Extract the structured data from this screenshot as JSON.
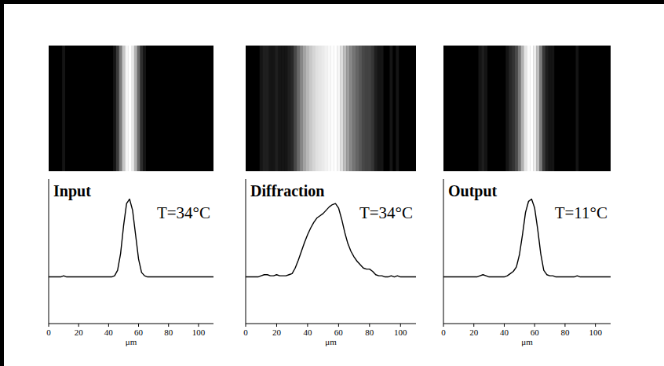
{
  "chart_data": [
    {
      "type": "line",
      "title": "Input",
      "annotation": "T=34°C",
      "x_label": "μm",
      "color": "#000000",
      "x": [
        0,
        2,
        4,
        6,
        8,
        10,
        12,
        14,
        16,
        18,
        20,
        22,
        24,
        26,
        28,
        30,
        32,
        34,
        36,
        38,
        40,
        42,
        44,
        46,
        48,
        50,
        52,
        54,
        56,
        58,
        60,
        62,
        64,
        66,
        68,
        70,
        72,
        74,
        76,
        78,
        80,
        82,
        84,
        86,
        88,
        90,
        92,
        94,
        96,
        98,
        100,
        102,
        104,
        106,
        108,
        110
      ],
      "values": [
        0.12,
        0.12,
        0.12,
        0.12,
        0.12,
        0.13,
        0.12,
        0.12,
        0.12,
        0.12,
        0.12,
        0.12,
        0.12,
        0.12,
        0.12,
        0.12,
        0.12,
        0.12,
        0.12,
        0.12,
        0.12,
        0.12,
        0.13,
        0.18,
        0.33,
        0.58,
        0.78,
        0.82,
        0.72,
        0.5,
        0.28,
        0.16,
        0.13,
        0.12,
        0.12,
        0.12,
        0.12,
        0.12,
        0.12,
        0.12,
        0.12,
        0.12,
        0.12,
        0.12,
        0.12,
        0.12,
        0.12,
        0.12,
        0.12,
        0.12,
        0.12,
        0.12,
        0.12,
        0.12,
        0.12,
        0.12
      ],
      "xlim": [
        0,
        110
      ],
      "xticks": [
        0,
        20,
        40,
        60,
        80,
        100
      ],
      "ylim": [
        -0.3,
        1
      ],
      "tick_labels": "x"
    },
    {
      "type": "line",
      "title": "Diffraction",
      "annotation": "T=34°C",
      "x_label": "μm",
      "color": "#000000",
      "x": [
        0,
        2,
        4,
        6,
        8,
        10,
        12,
        14,
        16,
        18,
        20,
        22,
        24,
        26,
        28,
        30,
        32,
        34,
        36,
        38,
        40,
        42,
        44,
        46,
        48,
        50,
        52,
        54,
        56,
        58,
        60,
        62,
        64,
        66,
        68,
        70,
        72,
        74,
        76,
        78,
        80,
        82,
        84,
        86,
        88,
        90,
        92,
        94,
        96,
        98,
        100,
        102,
        104,
        106,
        108,
        110
      ],
      "values": [
        0.12,
        0.12,
        0.12,
        0.12,
        0.12,
        0.13,
        0.14,
        0.14,
        0.13,
        0.13,
        0.14,
        0.13,
        0.13,
        0.13,
        0.14,
        0.15,
        0.2,
        0.27,
        0.35,
        0.43,
        0.5,
        0.56,
        0.61,
        0.65,
        0.67,
        0.69,
        0.72,
        0.75,
        0.77,
        0.78,
        0.74,
        0.64,
        0.52,
        0.42,
        0.35,
        0.3,
        0.26,
        0.23,
        0.2,
        0.19,
        0.19,
        0.17,
        0.14,
        0.13,
        0.13,
        0.12,
        0.12,
        0.13,
        0.12,
        0.13,
        0.12,
        0.12,
        0.12,
        0.12,
        0.12,
        0.12
      ],
      "xlim": [
        0,
        110
      ],
      "xticks": [
        0,
        20,
        40,
        60,
        80,
        100
      ],
      "ylim": [
        -0.3,
        1
      ],
      "tick_labels": "x"
    },
    {
      "type": "line",
      "title": "Output",
      "annotation": "T=11°C",
      "x_label": "μm",
      "color": "#000000",
      "x": [
        0,
        2,
        4,
        6,
        8,
        10,
        12,
        14,
        16,
        18,
        20,
        22,
        24,
        26,
        28,
        30,
        32,
        34,
        36,
        38,
        40,
        42,
        44,
        46,
        48,
        50,
        52,
        54,
        56,
        58,
        60,
        62,
        64,
        66,
        68,
        70,
        72,
        74,
        76,
        78,
        80,
        82,
        84,
        86,
        88,
        90,
        92,
        94,
        96,
        98,
        100,
        102,
        104,
        106,
        108,
        110
      ],
      "values": [
        0.12,
        0.12,
        0.12,
        0.12,
        0.12,
        0.12,
        0.12,
        0.12,
        0.12,
        0.12,
        0.12,
        0.12,
        0.13,
        0.14,
        0.13,
        0.12,
        0.12,
        0.12,
        0.12,
        0.12,
        0.12,
        0.13,
        0.15,
        0.17,
        0.21,
        0.32,
        0.5,
        0.7,
        0.8,
        0.82,
        0.74,
        0.55,
        0.33,
        0.18,
        0.14,
        0.13,
        0.13,
        0.12,
        0.12,
        0.12,
        0.12,
        0.12,
        0.12,
        0.12,
        0.13,
        0.12,
        0.12,
        0.12,
        0.12,
        0.12,
        0.12,
        0.12,
        0.12,
        0.12,
        0.12,
        0.12
      ],
      "xlim": [
        0,
        110
      ],
      "xticks": [
        0,
        20,
        40,
        60,
        80,
        100
      ],
      "ylim": [
        -0.3,
        1
      ],
      "tick_labels": "x"
    }
  ]
}
